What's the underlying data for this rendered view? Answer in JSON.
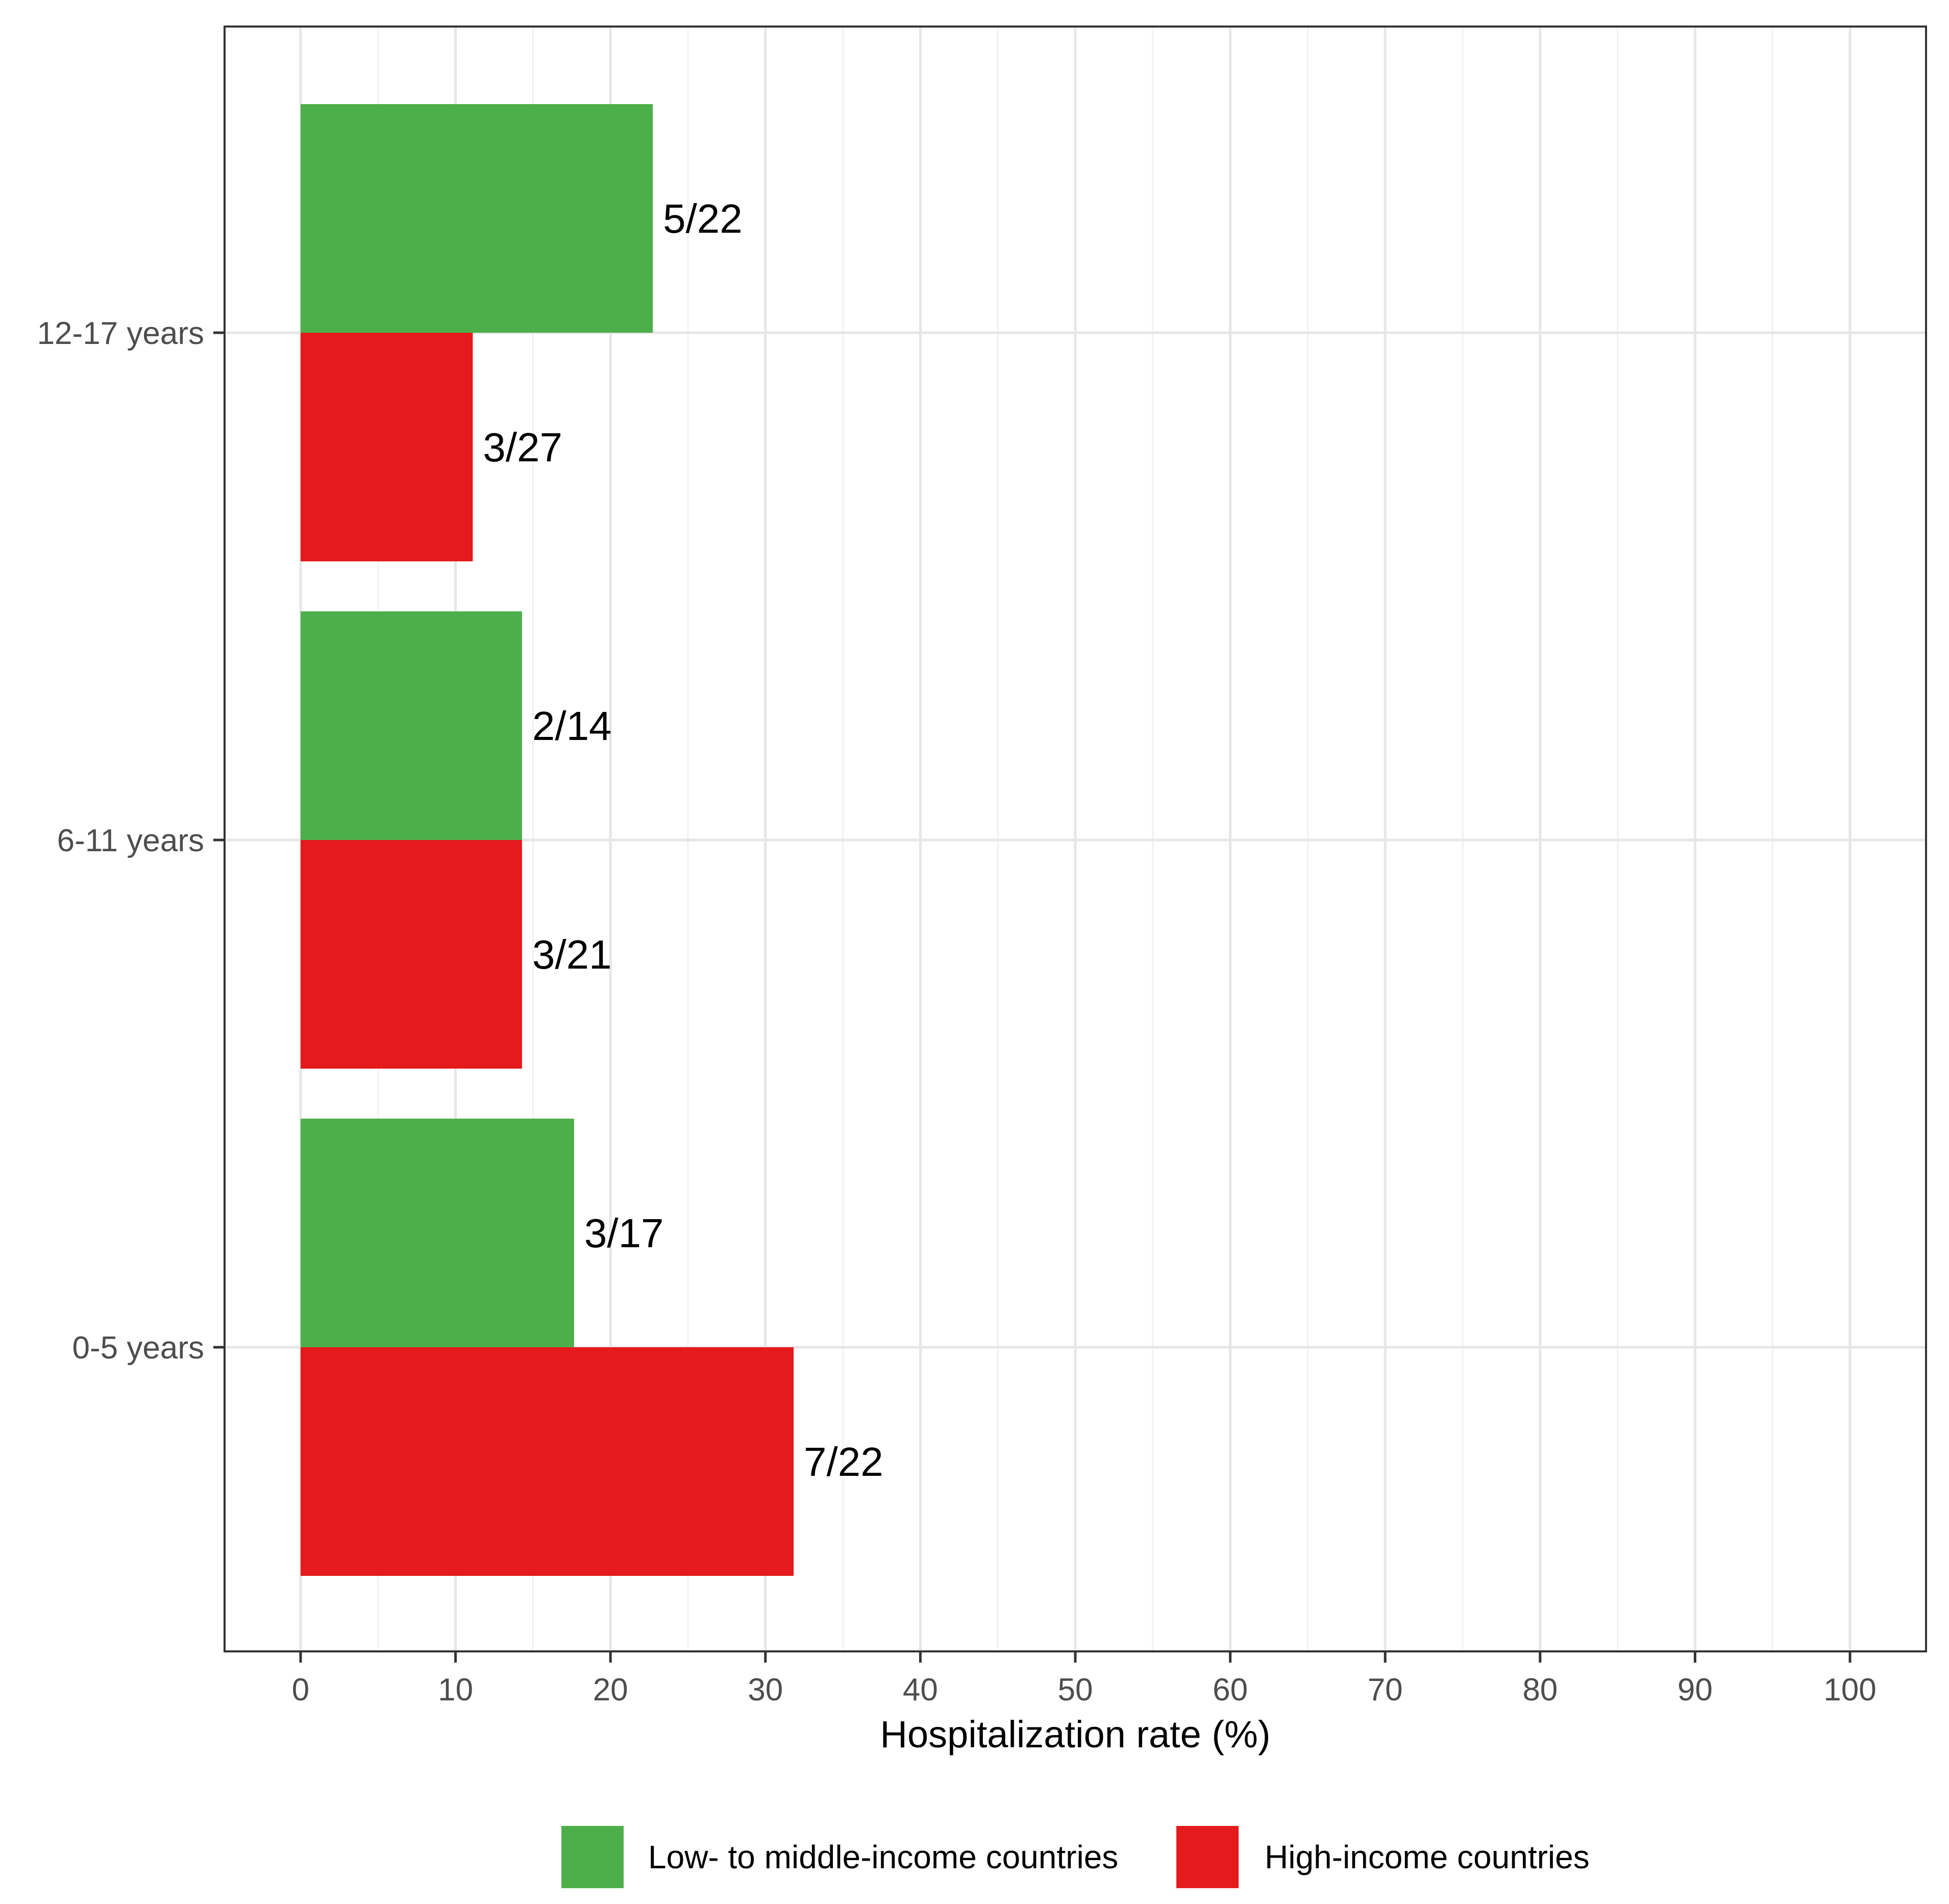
{
  "chart_data": {
    "type": "bar",
    "orientation": "horizontal",
    "categories": [
      "0-5 years",
      "6-11 years",
      "12-17 years"
    ],
    "series": [
      {
        "name": "Low- to middle-income countries",
        "color": "#4daf4a",
        "values": [
          17.65,
          14.29,
          22.73
        ],
        "labels": [
          "3/17",
          "2/14",
          "5/22"
        ]
      },
      {
        "name": "High-income countries",
        "color": "#e41a1c",
        "values": [
          31.82,
          14.29,
          11.11
        ],
        "labels": [
          "7/22",
          "3/21",
          "3/27"
        ]
      }
    ],
    "xlabel": "Hospitalization rate (%)",
    "ylabel": "",
    "xlim": [
      0,
      100
    ],
    "xticks": [
      "0",
      "10",
      "20",
      "30",
      "40",
      "50",
      "60",
      "70",
      "80",
      "90",
      "100"
    ],
    "grid": true,
    "legend_position": "bottom"
  }
}
